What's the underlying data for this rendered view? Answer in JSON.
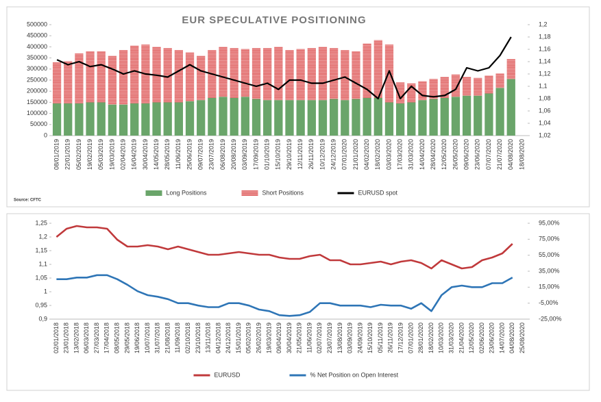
{
  "chart_data": [
    {
      "type": "bar",
      "title": "EUR SPECULATIVE POSITIONING",
      "source": "Source: CFTC",
      "stacked": true,
      "grid": false,
      "legend": "bottom",
      "categories": [
        "08/01/2019",
        "22/01/2019",
        "05/02/2019",
        "19/02/2019",
        "05/03/2019",
        "19/03/2019",
        "02/04/2019",
        "16/04/2019",
        "30/04/2019",
        "14/05/2019",
        "28/05/2019",
        "11/06/2019",
        "25/06/2019",
        "09/07/2019",
        "23/07/2019",
        "06/08/2019",
        "20/08/2019",
        "03/09/2019",
        "17/09/2019",
        "01/10/2019",
        "15/10/2019",
        "29/10/2019",
        "12/11/2019",
        "26/11/2019",
        "10/12/2019",
        "24/12/2019",
        "07/01/2020",
        "21/01/2020",
        "04/02/2020",
        "18/02/2020",
        "03/03/2020",
        "17/03/2020",
        "31/03/2020",
        "14/04/2020",
        "28/04/2020",
        "12/05/2020",
        "26/05/2020",
        "09/06/2020",
        "23/06/2020",
        "07/07/2020",
        "21/07/2020",
        "04/08/2020",
        "18/08/2020"
      ],
      "series": [
        {
          "name": "Long Positions",
          "color": "#6aa56a",
          "values": [
            145000,
            145000,
            145000,
            150000,
            150000,
            140000,
            140000,
            145000,
            145000,
            150000,
            150000,
            150000,
            155000,
            160000,
            170000,
            175000,
            170000,
            175000,
            165000,
            160000,
            160000,
            160000,
            160000,
            160000,
            160000,
            165000,
            160000,
            165000,
            170000,
            170000,
            150000,
            145000,
            150000,
            160000,
            165000,
            170000,
            175000,
            180000,
            180000,
            190000,
            215000,
            255000,
            null
          ]
        },
        {
          "name": "Short Positions",
          "color": "#e06060",
          "values": [
            185000,
            190000,
            225000,
            230000,
            230000,
            220000,
            245000,
            260000,
            265000,
            250000,
            245000,
            235000,
            220000,
            200000,
            215000,
            225000,
            225000,
            215000,
            230000,
            235000,
            240000,
            225000,
            230000,
            235000,
            240000,
            230000,
            225000,
            215000,
            245000,
            260000,
            260000,
            95000,
            85000,
            85000,
            90000,
            95000,
            100000,
            85000,
            80000,
            80000,
            65000,
            90000,
            null
          ]
        },
        {
          "name": "EURUSD spot",
          "color": "#000000",
          "type": "line",
          "axis": "y2",
          "values": [
            1.143,
            1.135,
            1.14,
            1.132,
            1.135,
            1.128,
            1.12,
            1.125,
            1.12,
            1.118,
            1.115,
            1.125,
            1.135,
            1.125,
            1.12,
            1.115,
            1.11,
            1.105,
            1.1,
            1.105,
            1.095,
            1.11,
            1.11,
            1.105,
            1.105,
            1.11,
            1.115,
            1.105,
            1.095,
            1.08,
            1.125,
            1.08,
            1.1,
            1.085,
            1.083,
            1.085,
            1.095,
            1.13,
            1.125,
            1.13,
            1.15,
            1.18,
            null
          ]
        }
      ],
      "ylim": [
        0,
        500000
      ],
      "yticks": [
        0,
        50000,
        100000,
        150000,
        200000,
        250000,
        300000,
        350000,
        400000,
        450000,
        500000
      ],
      "y2lim": [
        1.02,
        1.2
      ],
      "y2ticks": [
        {
          "value": 1.02,
          "label": "1,02"
        },
        {
          "value": 1.04,
          "label": "1,04"
        },
        {
          "value": 1.06,
          "label": "1,06"
        },
        {
          "value": 1.08,
          "label": "1,08"
        },
        {
          "value": 1.1,
          "label": "1,1"
        },
        {
          "value": 1.12,
          "label": "1,12"
        },
        {
          "value": 1.14,
          "label": "1,14"
        },
        {
          "value": 1.16,
          "label": "1,16"
        },
        {
          "value": 1.18,
          "label": "1,18"
        },
        {
          "value": 1.2,
          "label": "1,2"
        }
      ]
    },
    {
      "type": "line",
      "grid": false,
      "legend": "bottom",
      "categories": [
        "02/01/2018",
        "23/01/2018",
        "13/02/2018",
        "06/03/2018",
        "27/03/2018",
        "17/04/2018",
        "08/05/2018",
        "29/05/2018",
        "19/06/2018",
        "10/07/2018",
        "31/07/2018",
        "21/08/2018",
        "11/09/2018",
        "02/10/2018",
        "23/10/2018",
        "13/11/2018",
        "04/12/2018",
        "24/12/2018",
        "15/01/2019",
        "05/02/2019",
        "26/02/2019",
        "19/03/2019",
        "09/04/2019",
        "30/04/2019",
        "21/05/2019",
        "11/06/2019",
        "02/07/2019",
        "23/07/2019",
        "13/08/2019",
        "03/09/2019",
        "24/09/2019",
        "15/10/2019",
        "05/11/2019",
        "26/11/2019",
        "17/12/2019",
        "07/01/2020",
        "28/01/2020",
        "18/02/2020",
        "10/03/2020",
        "31/03/2020",
        "21/04/2020",
        "12/05/2020",
        "02/06/2020",
        "23/06/2020",
        "14/07/2020",
        "04/08/2020",
        "25/08/2020"
      ],
      "series": [
        {
          "name": "EURUSD",
          "color": "#c0393b",
          "values": [
            1.2,
            1.23,
            1.24,
            1.235,
            1.235,
            1.23,
            1.19,
            1.165,
            1.165,
            1.17,
            1.165,
            1.155,
            1.165,
            1.155,
            1.145,
            1.135,
            1.135,
            1.14,
            1.145,
            1.14,
            1.135,
            1.135,
            1.125,
            1.12,
            1.12,
            1.13,
            1.135,
            1.115,
            1.115,
            1.1,
            1.1,
            1.105,
            1.11,
            1.1,
            1.11,
            1.115,
            1.105,
            1.085,
            1.115,
            1.1,
            1.085,
            1.09,
            1.115,
            1.125,
            1.14,
            1.175,
            null
          ]
        },
        {
          "name": "% Net Position on Open Interest",
          "color": "#2e75b6",
          "axis": "y2",
          "values": [
            25,
            25,
            27,
            27,
            30,
            30,
            25,
            18,
            10,
            5,
            3,
            0,
            -5,
            -5,
            -8,
            -10,
            -10,
            -5,
            -5,
            -8,
            -13,
            -15,
            -20,
            -21,
            -20,
            -16,
            -5,
            -5,
            -8,
            -8,
            -8,
            -10,
            -7,
            -8,
            -8,
            -12,
            -5,
            -15,
            5,
            15,
            17,
            15,
            15,
            20,
            20,
            27,
            null
          ]
        }
      ],
      "ylim": [
        0.9,
        1.25
      ],
      "yticks": [
        {
          "value": 0.9,
          "label": "0,9"
        },
        {
          "value": 0.95,
          "label": "0,95"
        },
        1,
        {
          "value": 1.05,
          "label": "1,05"
        },
        {
          "value": 1.1,
          "label": "1,1"
        },
        {
          "value": 1.15,
          "label": "1,15"
        },
        {
          "value": 1.2,
          "label": "1,2"
        },
        {
          "value": 1.25,
          "label": "1,25"
        }
      ],
      "y2lim": [
        -25,
        95
      ],
      "y2ticks": [
        {
          "value": -25,
          "label": "-25,00%"
        },
        {
          "value": -5,
          "label": "-5,00%"
        },
        {
          "value": 15,
          "label": "15,00%"
        },
        {
          "value": 35,
          "label": "35,00%"
        },
        {
          "value": 55,
          "label": "55,00%"
        },
        {
          "value": 75,
          "label": "75,00%"
        },
        {
          "value": 95,
          "label": "95,00%"
        }
      ]
    }
  ]
}
